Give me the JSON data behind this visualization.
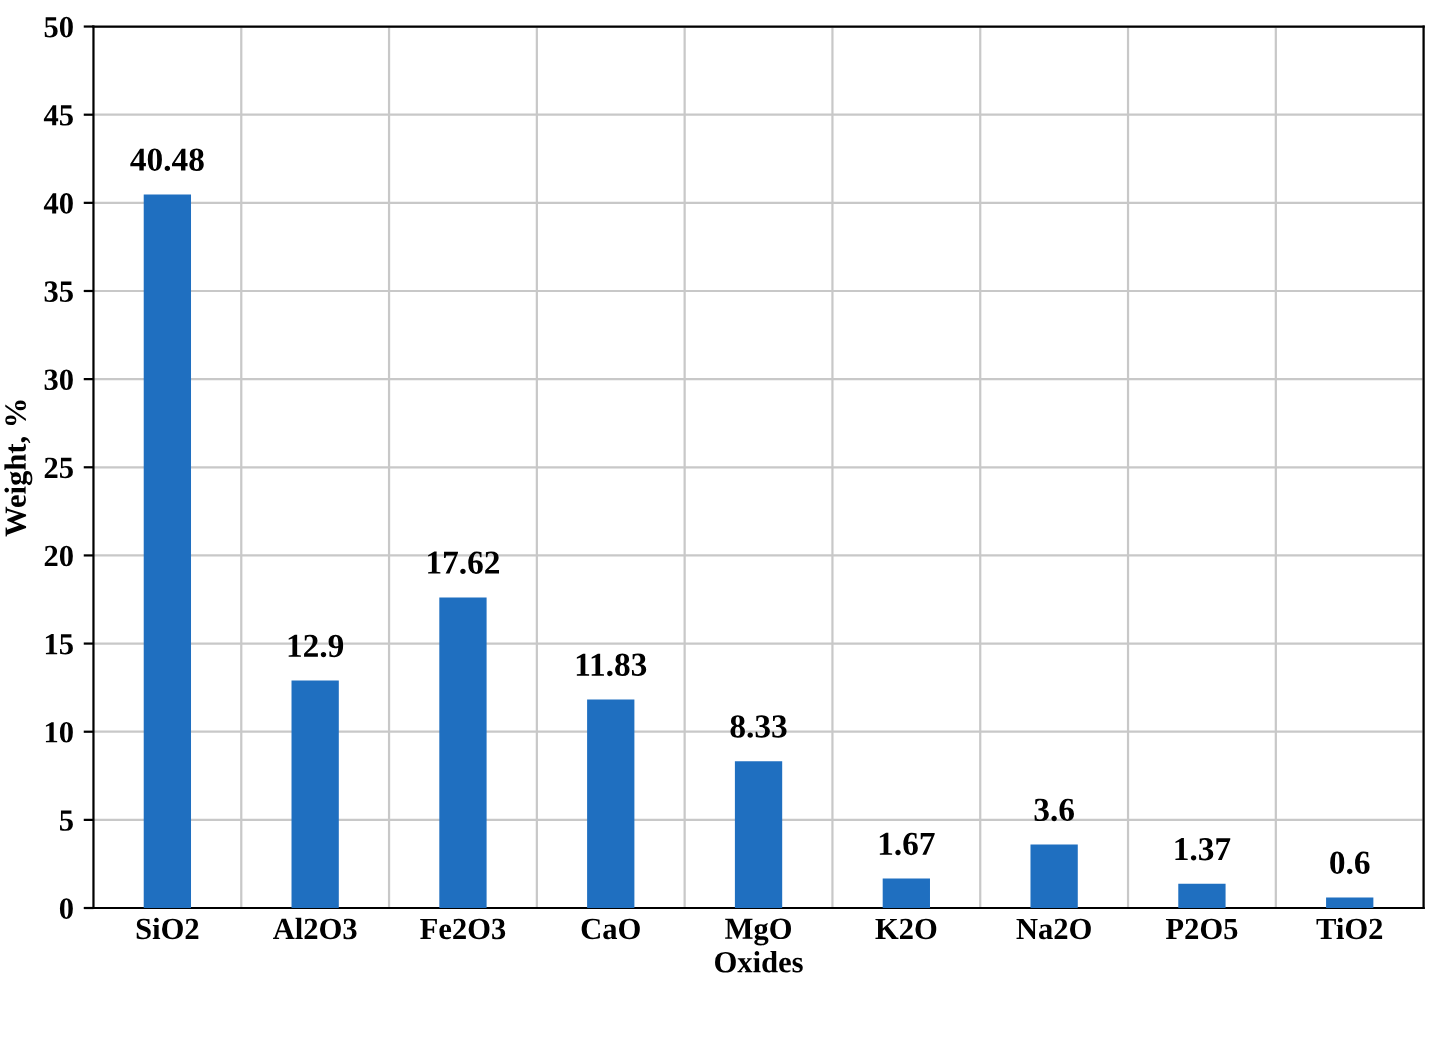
{
  "chart_data": {
    "type": "bar",
    "xlabel": "Oxides",
    "ylabel": "Weight, %",
    "categories": [
      "SiO2",
      "Al2O3",
      "Fe2O3",
      "CaO",
      "MgO",
      "K2O",
      "Na2O",
      "P2O5",
      "TiO2"
    ],
    "values": [
      40.48,
      12.9,
      17.62,
      11.83,
      8.33,
      1.67,
      3.6,
      1.37,
      0.6
    ],
    "color": "#1f6fc0",
    "ylim": [
      0,
      50
    ],
    "yticks": [
      0,
      5,
      10,
      15,
      20,
      25,
      30,
      35,
      40,
      45,
      50
    ],
    "grid": true,
    "data_labels": true
  }
}
